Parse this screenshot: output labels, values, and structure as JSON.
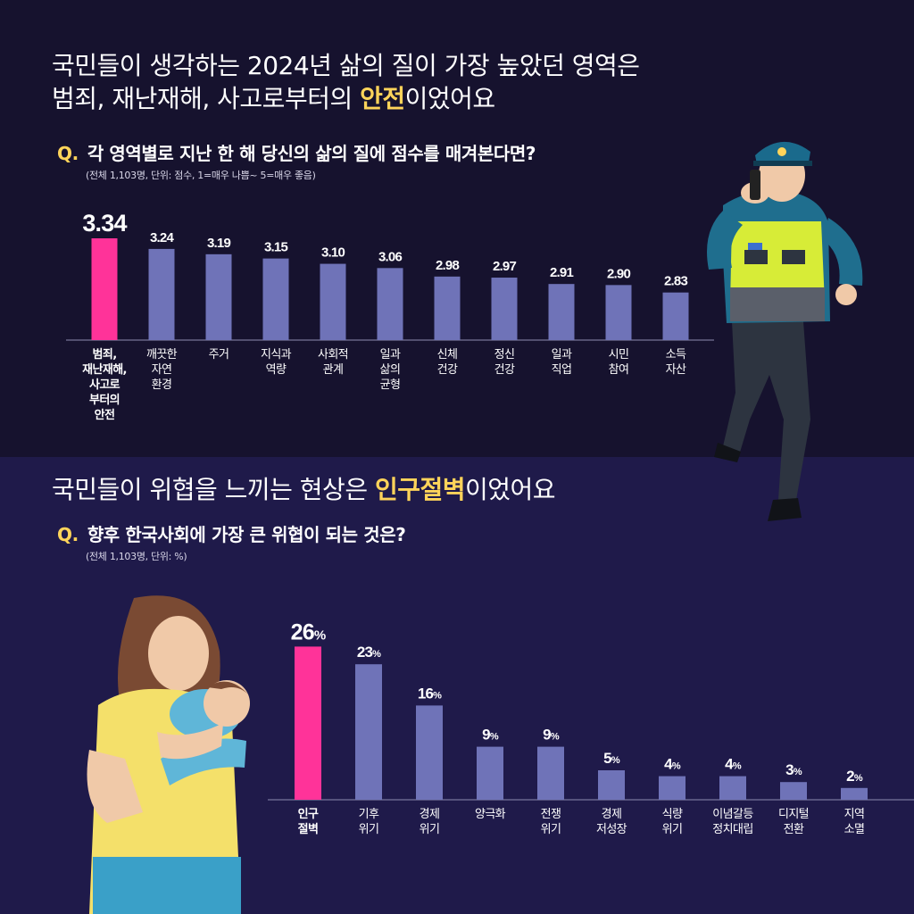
{
  "colors": {
    "top_bg": "#16122e",
    "bottom_bg": "#1f1a4a",
    "highlight": "#ff3399",
    "bar": "#6f73b8",
    "accent_text": "#ffd45a"
  },
  "section1": {
    "headline_line1": "국민들이 생각하는 2024년 삶의 질이 가장 높았던 영역은",
    "headline_line2_before": "범죄, 재난재해, 사고로부터의 ",
    "headline_line2_accent": "안전",
    "headline_line2_after": "이었어요",
    "question_mark": "Q.",
    "question_text": "각 영역별로  지난 한 해 당신의 삶의 질에 점수를 매겨본다면?",
    "note": "(전체 1,103명, 단위: 점수, 1=매우 나쁨~ 5=매우 좋음)"
  },
  "section2": {
    "headline_before": "국민들이 위협을 느끼는 현상은 ",
    "headline_accent": "인구절벽",
    "headline_after": "이었어요",
    "question_mark": "Q.",
    "question_text": "향후 한국사회에 가장 큰 위협이 되는 것은?",
    "note": "(전체 1,103명, 단위: %)"
  },
  "chart_data": [
    {
      "type": "bar",
      "title": "각 영역별로  지난 한 해 당신의 삶의 질에 점수를 매겨본다면?",
      "unit": "",
      "categories": [
        [
          "범죄,",
          "재난재해,",
          "사고로",
          "부터의",
          "안전"
        ],
        [
          "깨끗한",
          "자연",
          "환경"
        ],
        [
          "주거"
        ],
        [
          "지식과",
          "역량"
        ],
        [
          "사회적",
          "관계"
        ],
        [
          "일과",
          "삶의",
          "균형"
        ],
        [
          "신체",
          "건강"
        ],
        [
          "정신",
          "건강"
        ],
        [
          "일과",
          "직업"
        ],
        [
          "시민",
          "참여"
        ],
        [
          "소득",
          "자산"
        ]
      ],
      "values": [
        3.34,
        3.24,
        3.19,
        3.15,
        3.1,
        3.06,
        2.98,
        2.97,
        2.91,
        2.9,
        2.83
      ],
      "value_labels": [
        "3.34",
        "3.24",
        "3.19",
        "3.15",
        "3.10",
        "3.06",
        "2.98",
        "2.97",
        "2.91",
        "2.90",
        "2.83"
      ],
      "highlight_index": 0,
      "grid": false,
      "legend": "none"
    },
    {
      "type": "bar",
      "title": "향후 한국사회에 가장 큰 위협이 되는 것은?",
      "unit": "%",
      "categories": [
        [
          "인구",
          "절벽"
        ],
        [
          "기후",
          "위기"
        ],
        [
          "경제",
          "위기"
        ],
        [
          "양극화"
        ],
        [
          "전쟁",
          "위기"
        ],
        [
          "경제",
          "저성장"
        ],
        [
          "식량",
          "위기"
        ],
        [
          "이념갈등",
          "정치대립"
        ],
        [
          "디지털",
          "전환"
        ],
        [
          "지역",
          "소멸"
        ]
      ],
      "values": [
        26,
        23,
        16,
        9,
        9,
        5,
        4,
        4,
        3,
        2
      ],
      "value_labels": [
        "26",
        "23",
        "16",
        "9",
        "9",
        "5",
        "4",
        "4",
        "3",
        "2"
      ],
      "highlight_index": 0,
      "grid": false,
      "legend": "none"
    }
  ],
  "illustrations": {
    "officer": "police-officer-with-radio-illustration",
    "mother": "mother-holding-baby-illustration"
  }
}
